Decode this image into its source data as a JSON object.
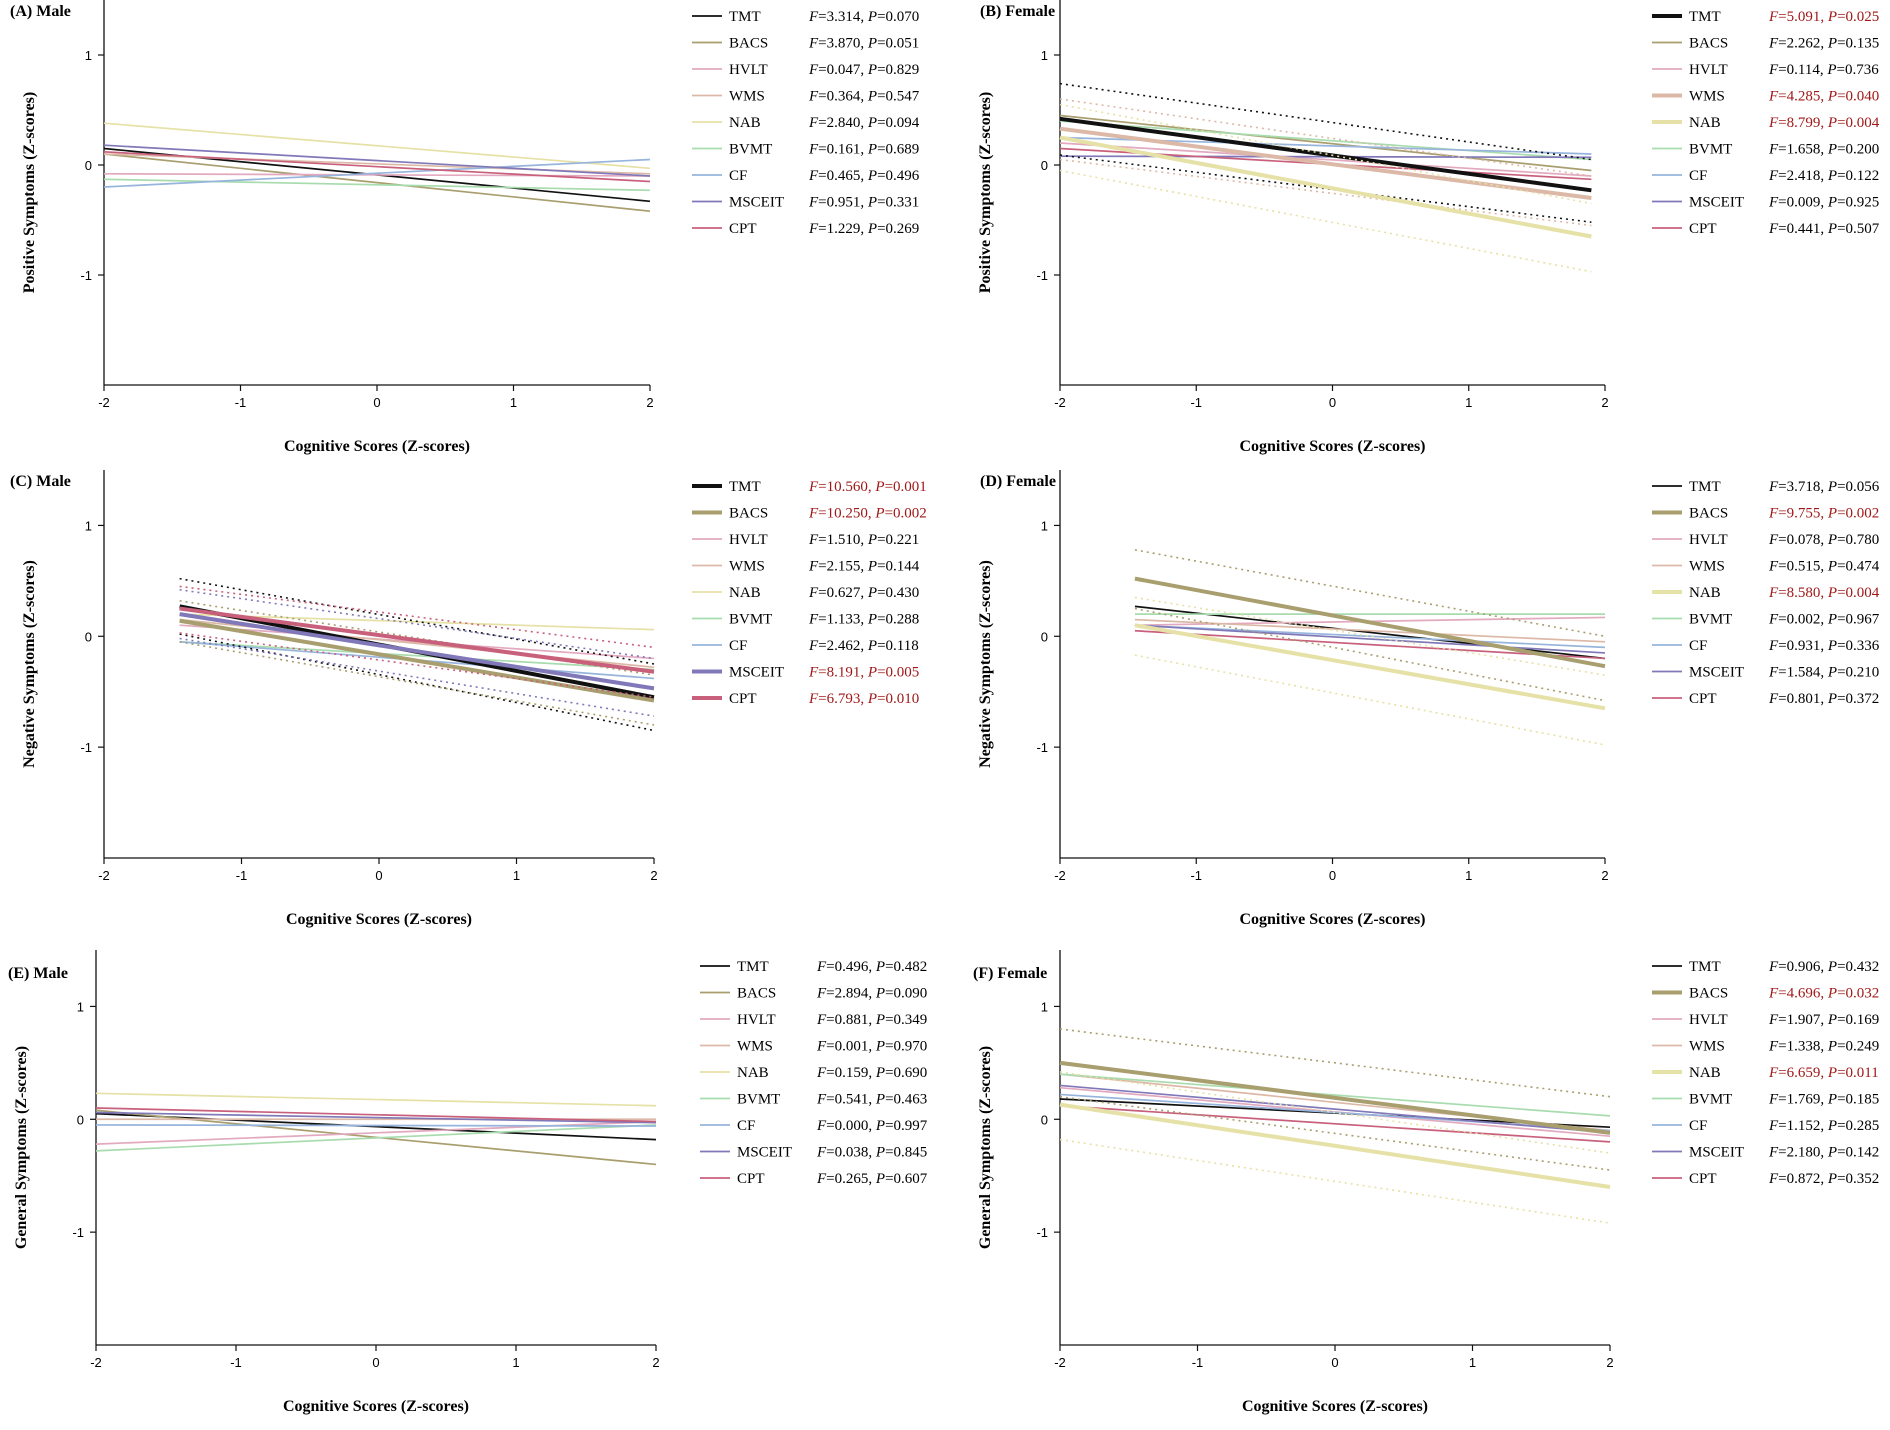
{
  "figure": {
    "x_axis_label": "Cognitive Scores (Z-scores)",
    "colors": {
      "TMT": "#111111",
      "BACS": "#a89e6e",
      "HVLT": "#e2a9bf",
      "WMS": "#dcb8a6",
      "NAB": "#e6e1a6",
      "BVMT": "#a8dcae",
      "CF": "#96b4dc",
      "MSCEIT": "#8078b8",
      "CPT": "#c8607c",
      "significant_text": "#a01818"
    }
  },
  "chart_data": [
    {
      "id": "A",
      "type": "line",
      "title": "(A) Male",
      "xlabel": "Cognitive Scores (Z-scores)",
      "ylabel": "Positive Symptoms (Z-scores)",
      "xlim": [
        -2,
        2
      ],
      "ylim": [
        -2,
        1.5
      ],
      "xticks": [
        -2,
        -1,
        0,
        1,
        2
      ],
      "yticks": [
        1,
        0,
        -1
      ],
      "series": [
        {
          "name": "TMT",
          "F": "3.314",
          "P": "0.070",
          "significant": false,
          "x": [
            -2,
            2
          ],
          "y": [
            0.15,
            -0.33
          ]
        },
        {
          "name": "BACS",
          "F": "3.870",
          "P": "0.051",
          "significant": false,
          "x": [
            -2,
            2
          ],
          "y": [
            0.1,
            -0.42
          ]
        },
        {
          "name": "HVLT",
          "F": "0.047",
          "P": "0.829",
          "significant": false,
          "x": [
            -2,
            2
          ],
          "y": [
            -0.08,
            -0.1
          ]
        },
        {
          "name": "WMS",
          "F": "0.364",
          "P": "0.547",
          "significant": false,
          "x": [
            -2,
            2
          ],
          "y": [
            0.1,
            -0.08
          ]
        },
        {
          "name": "NAB",
          "F": "2.840",
          "P": "0.094",
          "significant": false,
          "x": [
            -2,
            2
          ],
          "y": [
            0.38,
            -0.03
          ]
        },
        {
          "name": "BVMT",
          "F": "0.161",
          "P": "0.689",
          "significant": false,
          "x": [
            -2,
            2
          ],
          "y": [
            -0.13,
            -0.23
          ]
        },
        {
          "name": "CF",
          "F": "0.465",
          "P": "0.496",
          "significant": false,
          "x": [
            -2,
            2
          ],
          "y": [
            -0.2,
            0.05
          ]
        },
        {
          "name": "MSCEIT",
          "F": "0.951",
          "P": "0.331",
          "significant": false,
          "x": [
            -2,
            2
          ],
          "y": [
            0.18,
            -0.1
          ]
        },
        {
          "name": "CPT",
          "F": "1.229",
          "P": "0.269",
          "significant": false,
          "x": [
            -2,
            2
          ],
          "y": [
            0.12,
            -0.15
          ]
        }
      ]
    },
    {
      "id": "B",
      "type": "line",
      "title": "(B) Female",
      "xlabel": "Cognitive Scores (Z-scores)",
      "ylabel": "Positive Symptoms (Z-scores)",
      "xlim": [
        -2,
        2
      ],
      "ylim": [
        -2,
        1.5
      ],
      "xticks": [
        -2,
        -1,
        0,
        1,
        2
      ],
      "yticks": [
        1,
        0,
        -1
      ],
      "series": [
        {
          "name": "TMT",
          "F": "5.091",
          "P": "0.025",
          "significant": true,
          "x": [
            -2,
            1.9
          ],
          "y": [
            0.42,
            -0.23
          ],
          "ci_upper": [
            0.74,
            0.05
          ],
          "ci_lower": [
            0.09,
            -0.52
          ]
        },
        {
          "name": "BACS",
          "F": "2.262",
          "P": "0.135",
          "significant": false,
          "x": [
            -2,
            1.9
          ],
          "y": [
            0.45,
            -0.05
          ]
        },
        {
          "name": "HVLT",
          "F": "0.114",
          "P": "0.736",
          "significant": false,
          "x": [
            -2,
            1.9
          ],
          "y": [
            0.2,
            -0.1
          ]
        },
        {
          "name": "WMS",
          "F": "4.285",
          "P": "0.040",
          "significant": true,
          "x": [
            -2,
            1.9
          ],
          "y": [
            0.33,
            -0.3
          ],
          "ci_upper": [
            0.6,
            -0.1
          ],
          "ci_lower": [
            0.05,
            -0.55
          ]
        },
        {
          "name": "NAB",
          "F": "8.799",
          "P": "0.004",
          "significant": true,
          "x": [
            -2,
            1.9
          ],
          "y": [
            0.25,
            -0.65
          ],
          "ci_upper": [
            0.55,
            -0.35
          ],
          "ci_lower": [
            -0.05,
            -0.97
          ]
        },
        {
          "name": "BVMT",
          "F": "1.658",
          "P": "0.200",
          "significant": false,
          "x": [
            -2,
            1.9
          ],
          "y": [
            0.4,
            0.05
          ]
        },
        {
          "name": "CF",
          "F": "2.418",
          "P": "0.122",
          "significant": false,
          "x": [
            -2,
            1.9
          ],
          "y": [
            0.25,
            0.1
          ]
        },
        {
          "name": "MSCEIT",
          "F": "0.009",
          "P": "0.925",
          "significant": false,
          "x": [
            -2,
            1.9
          ],
          "y": [
            0.08,
            0.07
          ]
        },
        {
          "name": "CPT",
          "F": "0.441",
          "P": "0.507",
          "significant": false,
          "x": [
            -2,
            1.9
          ],
          "y": [
            0.15,
            -0.13
          ]
        }
      ]
    },
    {
      "id": "C",
      "type": "line",
      "title": "(C) Male",
      "xlabel": "Cognitive Scores (Z-scores)",
      "ylabel": "Negative Symptoms (Z-scores)",
      "xlim": [
        -2,
        2
      ],
      "ylim": [
        -2,
        1.5
      ],
      "xticks": [
        -2,
        -1,
        0,
        1,
        2
      ],
      "yticks": [
        1,
        0,
        -1
      ],
      "series": [
        {
          "name": "TMT",
          "F": "10.560",
          "P": "0.001",
          "significant": true,
          "x": [
            -1.45,
            2
          ],
          "y": [
            0.27,
            -0.55
          ],
          "ci_upper": [
            0.52,
            -0.25
          ],
          "ci_lower": [
            0.02,
            -0.85
          ]
        },
        {
          "name": "BACS",
          "F": "10.250",
          "P": "0.002",
          "significant": true,
          "x": [
            -1.45,
            2
          ],
          "y": [
            0.14,
            -0.58
          ],
          "ci_upper": [
            0.32,
            -0.35
          ],
          "ci_lower": [
            -0.05,
            -0.8
          ]
        },
        {
          "name": "HVLT",
          "F": "1.510",
          "P": "0.221",
          "significant": false,
          "x": [
            -1.45,
            2
          ],
          "y": [
            0.1,
            -0.2
          ]
        },
        {
          "name": "WMS",
          "F": "2.155",
          "P": "0.144",
          "significant": false,
          "x": [
            -1.45,
            2
          ],
          "y": [
            0.15,
            -0.28
          ]
        },
        {
          "name": "NAB",
          "F": "0.627",
          "P": "0.430",
          "significant": false,
          "x": [
            -1.45,
            2
          ],
          "y": [
            0.2,
            0.06
          ]
        },
        {
          "name": "BVMT",
          "F": "1.133",
          "P": "0.288",
          "significant": false,
          "x": [
            -1.45,
            2
          ],
          "y": [
            -0.05,
            -0.3
          ]
        },
        {
          "name": "CF",
          "F": "2.462",
          "P": "0.118",
          "significant": false,
          "x": [
            -1.45,
            2
          ],
          "y": [
            -0.05,
            -0.38
          ]
        },
        {
          "name": "MSCEIT",
          "F": "8.191",
          "P": "0.005",
          "significant": true,
          "x": [
            -1.45,
            2
          ],
          "y": [
            0.2,
            -0.47
          ],
          "ci_upper": [
            0.42,
            -0.2
          ],
          "ci_lower": [
            -0.02,
            -0.72
          ]
        },
        {
          "name": "CPT",
          "F": "6.793",
          "P": "0.010",
          "significant": true,
          "x": [
            -1.45,
            2
          ],
          "y": [
            0.25,
            -0.32
          ],
          "ci_upper": [
            0.45,
            -0.1
          ],
          "ci_lower": [
            0.03,
            -0.55
          ]
        }
      ]
    },
    {
      "id": "D",
      "type": "line",
      "title": "(D) Female",
      "xlabel": "Cognitive Scores (Z-scores)",
      "ylabel": "Negative Symptoms (Z-scores)",
      "xlim": [
        -2,
        2
      ],
      "ylim": [
        -2,
        1.5
      ],
      "xticks": [
        -2,
        -1,
        0,
        1,
        2
      ],
      "yticks": [
        1,
        0,
        -1
      ],
      "series": [
        {
          "name": "TMT",
          "F": "3.718",
          "P": "0.056",
          "significant": false,
          "x": [
            -1.45,
            2
          ],
          "y": [
            0.27,
            -0.2
          ]
        },
        {
          "name": "BACS",
          "F": "9.755",
          "P": "0.002",
          "significant": true,
          "x": [
            -1.45,
            2
          ],
          "y": [
            0.52,
            -0.27
          ],
          "ci_upper": [
            0.78,
            0.0
          ],
          "ci_lower": [
            0.25,
            -0.58
          ]
        },
        {
          "name": "HVLT",
          "F": "0.078",
          "P": "0.780",
          "significant": false,
          "x": [
            -1.45,
            2
          ],
          "y": [
            0.1,
            0.17
          ]
        },
        {
          "name": "WMS",
          "F": "0.515",
          "P": "0.474",
          "significant": false,
          "x": [
            -1.45,
            2
          ],
          "y": [
            0.15,
            -0.05
          ]
        },
        {
          "name": "NAB",
          "F": "8.580",
          "P": "0.004",
          "significant": true,
          "x": [
            -1.45,
            2
          ],
          "y": [
            0.1,
            -0.65
          ],
          "ci_upper": [
            0.35,
            -0.35
          ],
          "ci_lower": [
            -0.17,
            -0.98
          ]
        },
        {
          "name": "BVMT",
          "F": "0.002",
          "P": "0.967",
          "significant": false,
          "x": [
            -1.45,
            2
          ],
          "y": [
            0.2,
            0.2
          ]
        },
        {
          "name": "CF",
          "F": "0.931",
          "P": "0.336",
          "significant": false,
          "x": [
            -1.45,
            2
          ],
          "y": [
            0.1,
            -0.1
          ]
        },
        {
          "name": "MSCEIT",
          "F": "1.584",
          "P": "0.210",
          "significant": false,
          "x": [
            -1.45,
            2
          ],
          "y": [
            0.1,
            -0.15
          ]
        },
        {
          "name": "CPT",
          "F": "0.801",
          "P": "0.372",
          "significant": false,
          "x": [
            -1.45,
            2
          ],
          "y": [
            0.05,
            -0.2
          ]
        }
      ]
    },
    {
      "id": "E",
      "type": "line",
      "title": "(E) Male",
      "xlabel": "Cognitive Scores (Z-scores)",
      "ylabel": "General Symptoms (Z-scores)",
      "xlim": [
        -2,
        2
      ],
      "ylim": [
        -2,
        1.5
      ],
      "xticks": [
        -2,
        -1,
        0,
        1,
        2
      ],
      "yticks": [
        1,
        0,
        -1
      ],
      "series": [
        {
          "name": "TMT",
          "F": "0.496",
          "P": "0.482",
          "significant": false,
          "x": [
            -2,
            2
          ],
          "y": [
            0.05,
            -0.18
          ]
        },
        {
          "name": "BACS",
          "F": "2.894",
          "P": "0.090",
          "significant": false,
          "x": [
            -2,
            2
          ],
          "y": [
            0.08,
            -0.4
          ]
        },
        {
          "name": "HVLT",
          "F": "0.881",
          "P": "0.349",
          "significant": false,
          "x": [
            -2,
            2
          ],
          "y": [
            -0.22,
            -0.02
          ]
        },
        {
          "name": "WMS",
          "F": "0.001",
          "P": "0.970",
          "significant": false,
          "x": [
            -2,
            2
          ],
          "y": [
            0.0,
            0.0
          ]
        },
        {
          "name": "NAB",
          "F": "0.159",
          "P": "0.690",
          "significant": false,
          "x": [
            -2,
            2
          ],
          "y": [
            0.23,
            0.12
          ]
        },
        {
          "name": "BVMT",
          "F": "0.541",
          "P": "0.463",
          "significant": false,
          "x": [
            -2,
            2
          ],
          "y": [
            -0.28,
            -0.05
          ]
        },
        {
          "name": "CF",
          "F": "0.000",
          "P": "0.997",
          "significant": false,
          "x": [
            -2,
            2
          ],
          "y": [
            -0.05,
            -0.06
          ]
        },
        {
          "name": "MSCEIT",
          "F": "0.038",
          "P": "0.845",
          "significant": false,
          "x": [
            -2,
            2
          ],
          "y": [
            0.06,
            -0.03
          ]
        },
        {
          "name": "CPT",
          "F": "0.265",
          "P": "0.607",
          "significant": false,
          "x": [
            -2,
            2
          ],
          "y": [
            0.1,
            -0.02
          ]
        }
      ]
    },
    {
      "id": "F",
      "type": "line",
      "title": "(F) Female",
      "xlabel": "Cognitive Scores (Z-scores)",
      "ylabel": "General Symptoms (Z-scores)",
      "xlim": [
        -2,
        2
      ],
      "ylim": [
        -2,
        1.5
      ],
      "xticks": [
        -2,
        -1,
        0,
        1,
        2
      ],
      "yticks": [
        1,
        0,
        -1
      ],
      "series": [
        {
          "name": "TMT",
          "F": "0.906",
          "P": "0.432",
          "significant": false,
          "x": [
            -2,
            2
          ],
          "y": [
            0.18,
            -0.07
          ]
        },
        {
          "name": "BACS",
          "F": "4.696",
          "P": "0.032",
          "significant": true,
          "x": [
            -2,
            2
          ],
          "y": [
            0.5,
            -0.12
          ],
          "ci_upper": [
            0.8,
            0.2
          ],
          "ci_lower": [
            0.2,
            -0.45
          ]
        },
        {
          "name": "HVLT",
          "F": "1.907",
          "P": "0.169",
          "significant": false,
          "x": [
            -2,
            2
          ],
          "y": [
            0.28,
            -0.15
          ]
        },
        {
          "name": "WMS",
          "F": "1.338",
          "P": "0.249",
          "significant": false,
          "x": [
            -2,
            2
          ],
          "y": [
            0.4,
            -0.1
          ]
        },
        {
          "name": "NAB",
          "F": "6.659",
          "P": "0.011",
          "significant": true,
          "x": [
            -2,
            2
          ],
          "y": [
            0.13,
            -0.6
          ],
          "ci_upper": [
            0.42,
            -0.3
          ],
          "ci_lower": [
            -0.18,
            -0.92
          ]
        },
        {
          "name": "BVMT",
          "F": "1.769",
          "P": "0.185",
          "significant": false,
          "x": [
            -2,
            2
          ],
          "y": [
            0.4,
            0.03
          ]
        },
        {
          "name": "CF",
          "F": "1.152",
          "P": "0.285",
          "significant": false,
          "x": [
            -2,
            2
          ],
          "y": [
            0.22,
            -0.1
          ]
        },
        {
          "name": "MSCEIT",
          "F": "2.180",
          "P": "0.142",
          "significant": false,
          "x": [
            -2,
            2
          ],
          "y": [
            0.3,
            -0.12
          ]
        },
        {
          "name": "CPT",
          "F": "0.872",
          "P": "0.352",
          "significant": false,
          "x": [
            -2,
            2
          ],
          "y": [
            0.12,
            -0.2
          ]
        }
      ]
    }
  ]
}
